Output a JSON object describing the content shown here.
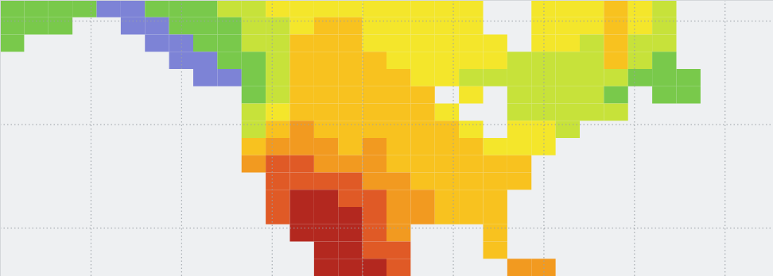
{
  "chart_data": {
    "type": "heatmap",
    "grid": true,
    "tick_labels": false,
    "xlim": [
      -165,
      -37
    ],
    "ylim": [
      23,
      63
    ],
    "xticks": [
      -150,
      -135,
      -120,
      -105,
      -90,
      -75,
      -60,
      -45
    ],
    "yticks": [
      30,
      45,
      60
    ],
    "lon_edges": [
      -165,
      -161,
      -157,
      -153,
      -149,
      -145,
      -141,
      -137,
      -133,
      -129,
      -125,
      -121,
      -117,
      -113,
      -109,
      -105,
      -101,
      -97,
      -93,
      -89,
      -85,
      -81,
      -77,
      -73,
      -69,
      -65,
      -61,
      -57,
      -53,
      -49,
      -45,
      -41,
      -37
    ],
    "lat_edges": [
      63,
      60.5,
      58,
      55.5,
      53,
      50.5,
      48,
      45.5,
      43,
      40.5,
      38,
      35.5,
      33,
      30.5,
      28,
      25.5,
      23
    ],
    "levels": [
      1,
      2,
      3,
      4,
      5,
      6,
      7,
      8
    ],
    "colors": [
      "#7d83d6",
      "#79c94b",
      "#c7e23a",
      "#f4e62b",
      "#f8c21f",
      "#f29a20",
      "#e05a26",
      "#b3281f"
    ],
    "cells": [
      [
        2,
        2,
        2,
        2,
        1,
        1,
        2,
        2,
        2,
        3,
        3,
        4,
        4,
        4,
        4,
        4,
        4,
        4,
        4,
        4,
        null,
        null,
        4,
        4,
        4,
        5,
        4,
        3,
        null,
        null,
        null,
        null
      ],
      [
        2,
        2,
        2,
        null,
        null,
        1,
        1,
        2,
        2,
        2,
        3,
        3,
        4,
        5,
        5,
        4,
        4,
        4,
        4,
        4,
        null,
        null,
        4,
        4,
        4,
        5,
        4,
        3,
        null,
        null,
        null,
        null
      ],
      [
        2,
        null,
        null,
        null,
        null,
        null,
        1,
        1,
        2,
        2,
        3,
        3,
        5,
        5,
        5,
        4,
        4,
        4,
        4,
        4,
        4,
        null,
        4,
        4,
        3,
        5,
        3,
        3,
        null,
        null,
        null,
        null
      ],
      [
        null,
        null,
        null,
        null,
        null,
        null,
        null,
        1,
        1,
        2,
        2,
        3,
        5,
        5,
        5,
        5,
        4,
        4,
        4,
        4,
        4,
        3,
        3,
        3,
        3,
        5,
        3,
        2,
        null,
        null,
        null,
        null
      ],
      [
        null,
        null,
        null,
        null,
        null,
        null,
        null,
        null,
        1,
        1,
        2,
        3,
        5,
        5,
        5,
        5,
        5,
        4,
        4,
        3,
        3,
        3,
        3,
        3,
        3,
        3,
        2,
        2,
        2,
        null,
        null,
        null
      ],
      [
        null,
        null,
        null,
        null,
        null,
        null,
        null,
        null,
        null,
        null,
        2,
        3,
        5,
        5,
        5,
        5,
        5,
        5,
        null,
        4,
        null,
        3,
        3,
        3,
        3,
        2,
        null,
        2,
        2,
        null,
        null,
        null
      ],
      [
        null,
        null,
        null,
        null,
        null,
        null,
        null,
        null,
        null,
        null,
        3,
        4,
        5,
        5,
        5,
        5,
        5,
        5,
        4,
        null,
        null,
        3,
        3,
        3,
        3,
        3,
        null,
        null,
        null,
        null,
        null,
        null
      ],
      [
        null,
        null,
        null,
        null,
        null,
        null,
        null,
        null,
        null,
        null,
        3,
        5,
        6,
        5,
        5,
        5,
        5,
        5,
        5,
        4,
        null,
        4,
        4,
        3,
        null,
        null,
        null,
        null,
        null,
        null,
        null,
        null
      ],
      [
        null,
        null,
        null,
        null,
        null,
        null,
        null,
        null,
        null,
        null,
        5,
        6,
        6,
        6,
        5,
        6,
        5,
        5,
        5,
        5,
        4,
        4,
        4,
        null,
        null,
        null,
        null,
        null,
        null,
        null,
        null,
        null
      ],
      [
        null,
        null,
        null,
        null,
        null,
        null,
        null,
        null,
        null,
        null,
        6,
        7,
        7,
        6,
        6,
        6,
        5,
        5,
        5,
        5,
        5,
        5,
        null,
        null,
        null,
        null,
        null,
        null,
        null,
        null,
        null,
        null
      ],
      [
        null,
        null,
        null,
        null,
        null,
        null,
        null,
        null,
        null,
        null,
        null,
        7,
        7,
        7,
        7,
        6,
        6,
        5,
        5,
        5,
        5,
        5,
        null,
        null,
        null,
        null,
        null,
        null,
        null,
        null,
        null,
        null
      ],
      [
        null,
        null,
        null,
        null,
        null,
        null,
        null,
        null,
        null,
        null,
        null,
        7,
        8,
        8,
        7,
        7,
        6,
        6,
        5,
        5,
        5,
        null,
        null,
        null,
        null,
        null,
        null,
        null,
        null,
        null,
        null,
        null
      ],
      [
        null,
        null,
        null,
        null,
        null,
        null,
        null,
        null,
        null,
        null,
        null,
        7,
        8,
        8,
        8,
        7,
        6,
        6,
        5,
        5,
        5,
        null,
        null,
        null,
        null,
        null,
        null,
        null,
        null,
        null,
        null,
        null
      ],
      [
        null,
        null,
        null,
        null,
        null,
        null,
        null,
        null,
        null,
        null,
        null,
        null,
        8,
        8,
        8,
        7,
        6,
        null,
        null,
        null,
        5,
        null,
        null,
        null,
        null,
        null,
        null,
        null,
        null,
        null,
        null,
        null
      ],
      [
        null,
        null,
        null,
        null,
        null,
        null,
        null,
        null,
        null,
        null,
        null,
        null,
        null,
        8,
        8,
        7,
        7,
        null,
        null,
        null,
        5,
        null,
        null,
        null,
        null,
        null,
        null,
        null,
        null,
        null,
        null,
        null
      ],
      [
        null,
        null,
        null,
        null,
        null,
        null,
        null,
        null,
        null,
        null,
        null,
        null,
        null,
        8,
        8,
        8,
        7,
        null,
        null,
        null,
        null,
        6,
        6,
        null,
        null,
        null,
        null,
        null,
        null,
        null,
        null,
        null
      ]
    ]
  }
}
